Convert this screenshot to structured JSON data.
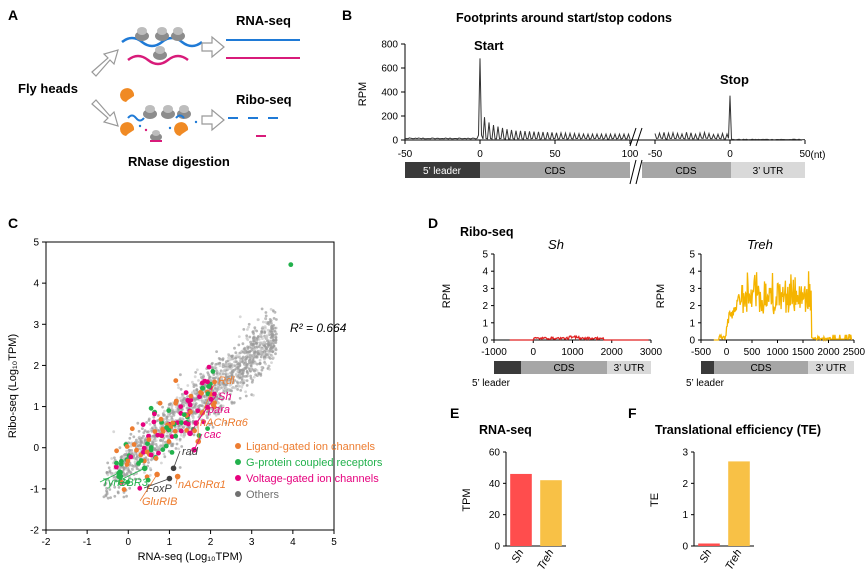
{
  "panel_a": {
    "label": "A",
    "fly_heads": "Fly heads",
    "rna_seq": "RNA-seq",
    "ribo_seq": "Ribo-seq",
    "rnase": "RNase digestion"
  },
  "panel_b": {
    "label": "B",
    "title": "Footprints around start/stop codons",
    "ylabel": "RPM",
    "start_label": "Start",
    "stop_label": "Stop",
    "unit": "(nt)",
    "yticks": [
      "0",
      "200",
      "400",
      "600",
      "800"
    ],
    "xticks_left": [
      "-50",
      "0",
      "50",
      "100"
    ],
    "xticks_right": [
      "-50",
      "0",
      "50"
    ],
    "bar": {
      "leader": "5’ leader",
      "cds": "CDS",
      "utr": "3’ UTR"
    },
    "colors": {
      "line": "#333333",
      "leader": "#3a3a3a",
      "cds": "#a6a6a6",
      "utr": "#d9d9d9"
    }
  },
  "panel_c": {
    "label": "C",
    "xlabel": "RNA-seq (Log₁₀TPM)",
    "ylabel": "Ribo-seq (Log₁₀TPM)",
    "r2": "R² = 0.664",
    "xticks": [
      "-2",
      "-1",
      "0",
      "1",
      "2",
      "3",
      "4",
      "5"
    ],
    "yticks": [
      "-2",
      "-1",
      "0",
      "1",
      "2",
      "3",
      "4",
      "5"
    ],
    "legend": [
      {
        "name": "Ligand-gated ion channels",
        "color": "#ed7d31"
      },
      {
        "name": "G-protein coupled receptors",
        "color": "#22b14c"
      },
      {
        "name": "Voltage-gated ion channels",
        "color": "#e6007e"
      },
      {
        "name": "Others",
        "color": "#707070"
      }
    ],
    "gene_labels": [
      {
        "text": "Rdl",
        "color": "#ed7d31"
      },
      {
        "text": "Sh",
        "color": "#e6007e"
      },
      {
        "text": "para",
        "color": "#e6007e"
      },
      {
        "text": "nAChRα6",
        "color": "#ed7d31"
      },
      {
        "text": "cac",
        "color": "#e6007e"
      },
      {
        "text": "rad",
        "color": "#404040"
      },
      {
        "text": "nAChRα1",
        "color": "#ed7d31"
      },
      {
        "text": "FoxP",
        "color": "#404040"
      },
      {
        "text": "TyrR",
        "color": "#22b14c"
      },
      {
        "text": "GBR3",
        "color": "#22b14c"
      },
      {
        "text": "GluRIB",
        "color": "#ed7d31"
      }
    ]
  },
  "panel_d": {
    "label": "D",
    "title": "Ribo-seq",
    "ylabel": "RPM",
    "yticks": [
      "0",
      "1",
      "2",
      "3",
      "4",
      "5"
    ],
    "sh": {
      "name": "Sh",
      "xticks": [
        "-1000",
        "0",
        "1000",
        "2000",
        "3000"
      ],
      "color": "#e02020"
    },
    "treh": {
      "name": "Treh",
      "xticks": [
        "-500",
        "0",
        "500",
        "1000",
        "1500",
        "2000",
        "2500"
      ],
      "color": "#f5b400"
    },
    "bar": {
      "leader": "5’ leader",
      "cds": "CDS",
      "utr": "3’ UTR"
    }
  },
  "panel_e": {
    "label": "E",
    "title": "RNA-seq",
    "ylabel": "TPM",
    "yticks": [
      "0",
      "20",
      "40",
      "60"
    ]
  },
  "panel_f": {
    "label": "F",
    "title": "Translational efficiency (TE)",
    "ylabel": "TE",
    "yticks": [
      "0",
      "1",
      "2",
      "3"
    ]
  },
  "chart_data": [
    {
      "type": "line",
      "panel": "B",
      "title": "Footprints around start/stop codons",
      "ylabel": "RPM",
      "ylim": [
        0,
        800
      ],
      "series": [
        {
          "segment": "start",
          "x_range": [
            -50,
            100
          ],
          "peak_x": 0,
          "peak_y": 680,
          "periodic_peaks_y": [
            190,
            150,
            130,
            120,
            110,
            100,
            95,
            90
          ]
        },
        {
          "segment": "stop",
          "x_range": [
            -50,
            50
          ],
          "peak_x": 0,
          "peak_y": 370,
          "periodic_peaks_y": [
            60,
            65,
            60,
            55
          ]
        }
      ]
    },
    {
      "type": "scatter",
      "panel": "C",
      "xlabel": "RNA-seq (Log₁₀TPM)",
      "ylabel": "Ribo-seq (Log₁₀TPM)",
      "xlim": [
        -2,
        5
      ],
      "ylim": [
        -2,
        5
      ],
      "r2": 0.664,
      "highlighted": [
        {
          "gene": "Rdl",
          "x": 1.8,
          "y": 0.85
        },
        {
          "gene": "Sh",
          "x": 1.65,
          "y": 0.6
        },
        {
          "gene": "para",
          "x": 1.5,
          "y": 0.35
        },
        {
          "gene": "nAChRα6",
          "x": 1.7,
          "y": 0.15
        },
        {
          "gene": "cac",
          "x": 1.6,
          "y": -0.05
        },
        {
          "gene": "rad",
          "x": 1.1,
          "y": -0.5
        },
        {
          "gene": "nAChRα1",
          "x": 1.2,
          "y": -0.7
        },
        {
          "gene": "FoxP",
          "x": 1.0,
          "y": -0.75
        },
        {
          "gene": "TyrR",
          "x": -0.2,
          "y": -0.6
        },
        {
          "gene": "GBR3",
          "x": 0.4,
          "y": -0.5
        },
        {
          "gene": "GluRIB",
          "x": 0.7,
          "y": -0.65
        }
      ]
    },
    {
      "type": "line",
      "panel": "D",
      "title": "Ribo-seq",
      "series": [
        {
          "name": "Sh",
          "xlim": [
            -1000,
            3000
          ],
          "ylim": [
            0,
            5
          ],
          "typical_y": 0.05,
          "max_y": 0.2
        },
        {
          "name": "Treh",
          "xlim": [
            -500,
            2500
          ],
          "ylim": [
            0,
            5
          ],
          "typical_y": 2.5,
          "max_y": 4.1
        }
      ]
    },
    {
      "type": "bar",
      "panel": "E",
      "title": "RNA-seq",
      "ylabel": "TPM",
      "categories": [
        "Sh",
        "Treh"
      ],
      "values": [
        46,
        42
      ],
      "colors": [
        "#ff4d4d",
        "#f8c146"
      ],
      "ylim": [
        0,
        60
      ]
    },
    {
      "type": "bar",
      "panel": "F",
      "title": "Translational efficiency (TE)",
      "ylabel": "TE",
      "categories": [
        "Sh",
        "Treh"
      ],
      "values": [
        0.08,
        2.7
      ],
      "colors": [
        "#ff4d4d",
        "#f8c146"
      ],
      "ylim": [
        0,
        3
      ]
    }
  ]
}
